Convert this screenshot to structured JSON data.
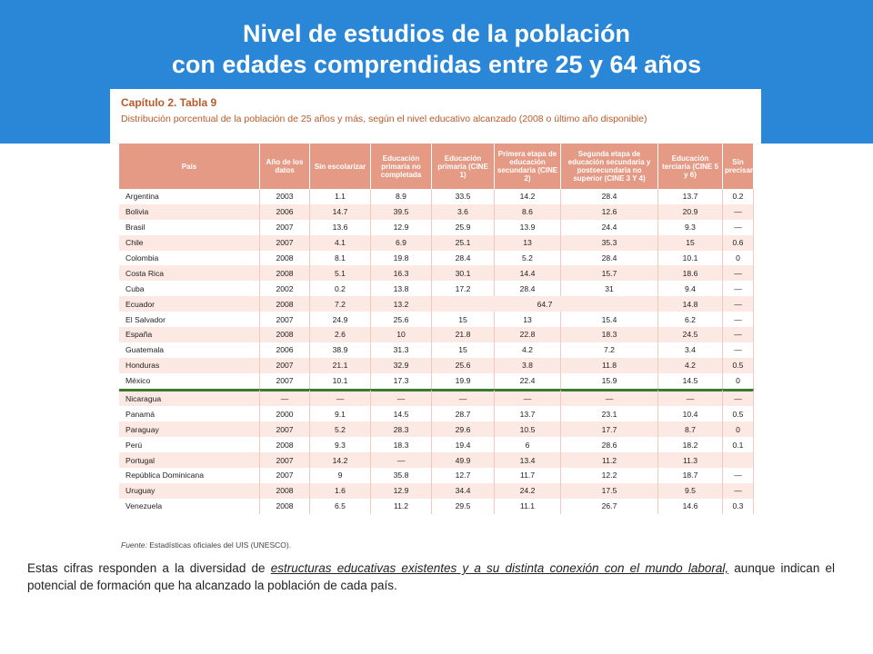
{
  "title": {
    "line1": "Nivel de estudios de la población",
    "line2": "con edades comprendidas entre 25 y 64 años"
  },
  "chapter": {
    "title": "Capítulo 2. Tabla 9",
    "subtitle": "Distribución porcentual de la población de 25 años y más, según el nivel educativo alcanzado (2008 o último año disponible)"
  },
  "table": {
    "headers": [
      "País",
      "Año de los datos",
      "Sin escolarizar",
      "Educación primaria no completada",
      "Educación primaria (CINE 1)",
      "Primera etapa de educación secundaria (CINE 2)",
      "Segunda etapa de educación secundaria y postsecundaria no superior (CINE 3 Y 4)",
      "Educación terciaria (CINE 5 y 6)",
      "Sin precisar"
    ],
    "rows": [
      [
        "Argentina",
        "2003",
        "1.1",
        "8.9",
        "33.5",
        "14.2",
        "28.4",
        "13.7",
        "0.2"
      ],
      [
        "Bolivia",
        "2006",
        "14.7",
        "39.5",
        "3.6",
        "8.6",
        "12.6",
        "20.9",
        "—"
      ],
      [
        "Brasil",
        "2007",
        "13.6",
        "12.9",
        "25.9",
        "13.9",
        "24.4",
        "9.3",
        "—"
      ],
      [
        "Chile",
        "2007",
        "4.1",
        "6.9",
        "25.1",
        "13",
        "35.3",
        "15",
        "0.6"
      ],
      [
        "Colombia",
        "2008",
        "8.1",
        "19.8",
        "28.4",
        "5.2",
        "28.4",
        "10.1",
        "0"
      ],
      [
        "Costa Rica",
        "2008",
        "5.1",
        "16.3",
        "30.1",
        "14.4",
        "15.7",
        "18.6",
        "—"
      ],
      [
        "Cuba",
        "2002",
        "0.2",
        "13.8",
        "17.2",
        "28.4",
        "31",
        "9.4",
        "—"
      ],
      [
        "Ecuador",
        "2008",
        "7.2",
        "13.2",
        "",
        "64.7",
        "",
        "14.8",
        "—"
      ],
      [
        "El Salvador",
        "2007",
        "24.9",
        "25.6",
        "15",
        "13",
        "15.4",
        "6.2",
        "—"
      ],
      [
        "España",
        "2008",
        "2.6",
        "10",
        "21.8",
        "22.8",
        "18.3",
        "24.5",
        "—"
      ],
      [
        "Guatemala",
        "2006",
        "38.9",
        "31.3",
        "15",
        "4.2",
        "7.2",
        "3.4",
        "—"
      ],
      [
        "Honduras",
        "2007",
        "21.1",
        "32.9",
        "25.6",
        "3.8",
        "11.8",
        "4.2",
        "0.5"
      ],
      [
        "México",
        "2007",
        "10.1",
        "17.3",
        "19.9",
        "22.4",
        "15.9",
        "14.5",
        "0"
      ],
      [
        "Nicaragua",
        "—",
        "—",
        "—",
        "—",
        "—",
        "—",
        "—",
        "—"
      ],
      [
        "Panamá",
        "2000",
        "9.1",
        "14.5",
        "28.7",
        "13.7",
        "23.1",
        "10.4",
        "0.5"
      ],
      [
        "Paraguay",
        "2007",
        "5.2",
        "28.3",
        "29.6",
        "10.5",
        "17.7",
        "8.7",
        "0"
      ],
      [
        "Perú",
        "2008",
        "9.3",
        "18.3",
        "19.4",
        "6",
        "28.6",
        "18.2",
        "0.1"
      ],
      [
        "Portugal",
        "2007",
        "14.2",
        "—",
        "49.9",
        "13.4",
        "11.2",
        "11.3",
        ""
      ],
      [
        "República Dominicana",
        "2007",
        "9",
        "35.8",
        "12.7",
        "11.7",
        "12.2",
        "18.7",
        "—"
      ],
      [
        "Uruguay",
        "2008",
        "1.6",
        "12.9",
        "34.4",
        "24.2",
        "17.5",
        "9.5",
        "—"
      ],
      [
        "Venezuela",
        "2008",
        "6.5",
        "11.2",
        "29.5",
        "11.1",
        "26.7",
        "14.6",
        "0.3"
      ]
    ]
  },
  "source": {
    "label": "Fuente:",
    "text": " Estadísticas oficiales del UIS (UNESCO)."
  },
  "body_text": {
    "before": "Estas cifras responden a la diversidad de ",
    "emphasis": "estructuras educativas existentes y a su distinta conexión con el mundo laboral,",
    "after": " aunque indican el potencial de formación que ha alcanzado la población de cada país."
  },
  "colors": {
    "header_bg": "#2a87d8",
    "table_header": "#e59a86",
    "row_alt": "#fde9e3",
    "separator": "#3a7a2c"
  }
}
